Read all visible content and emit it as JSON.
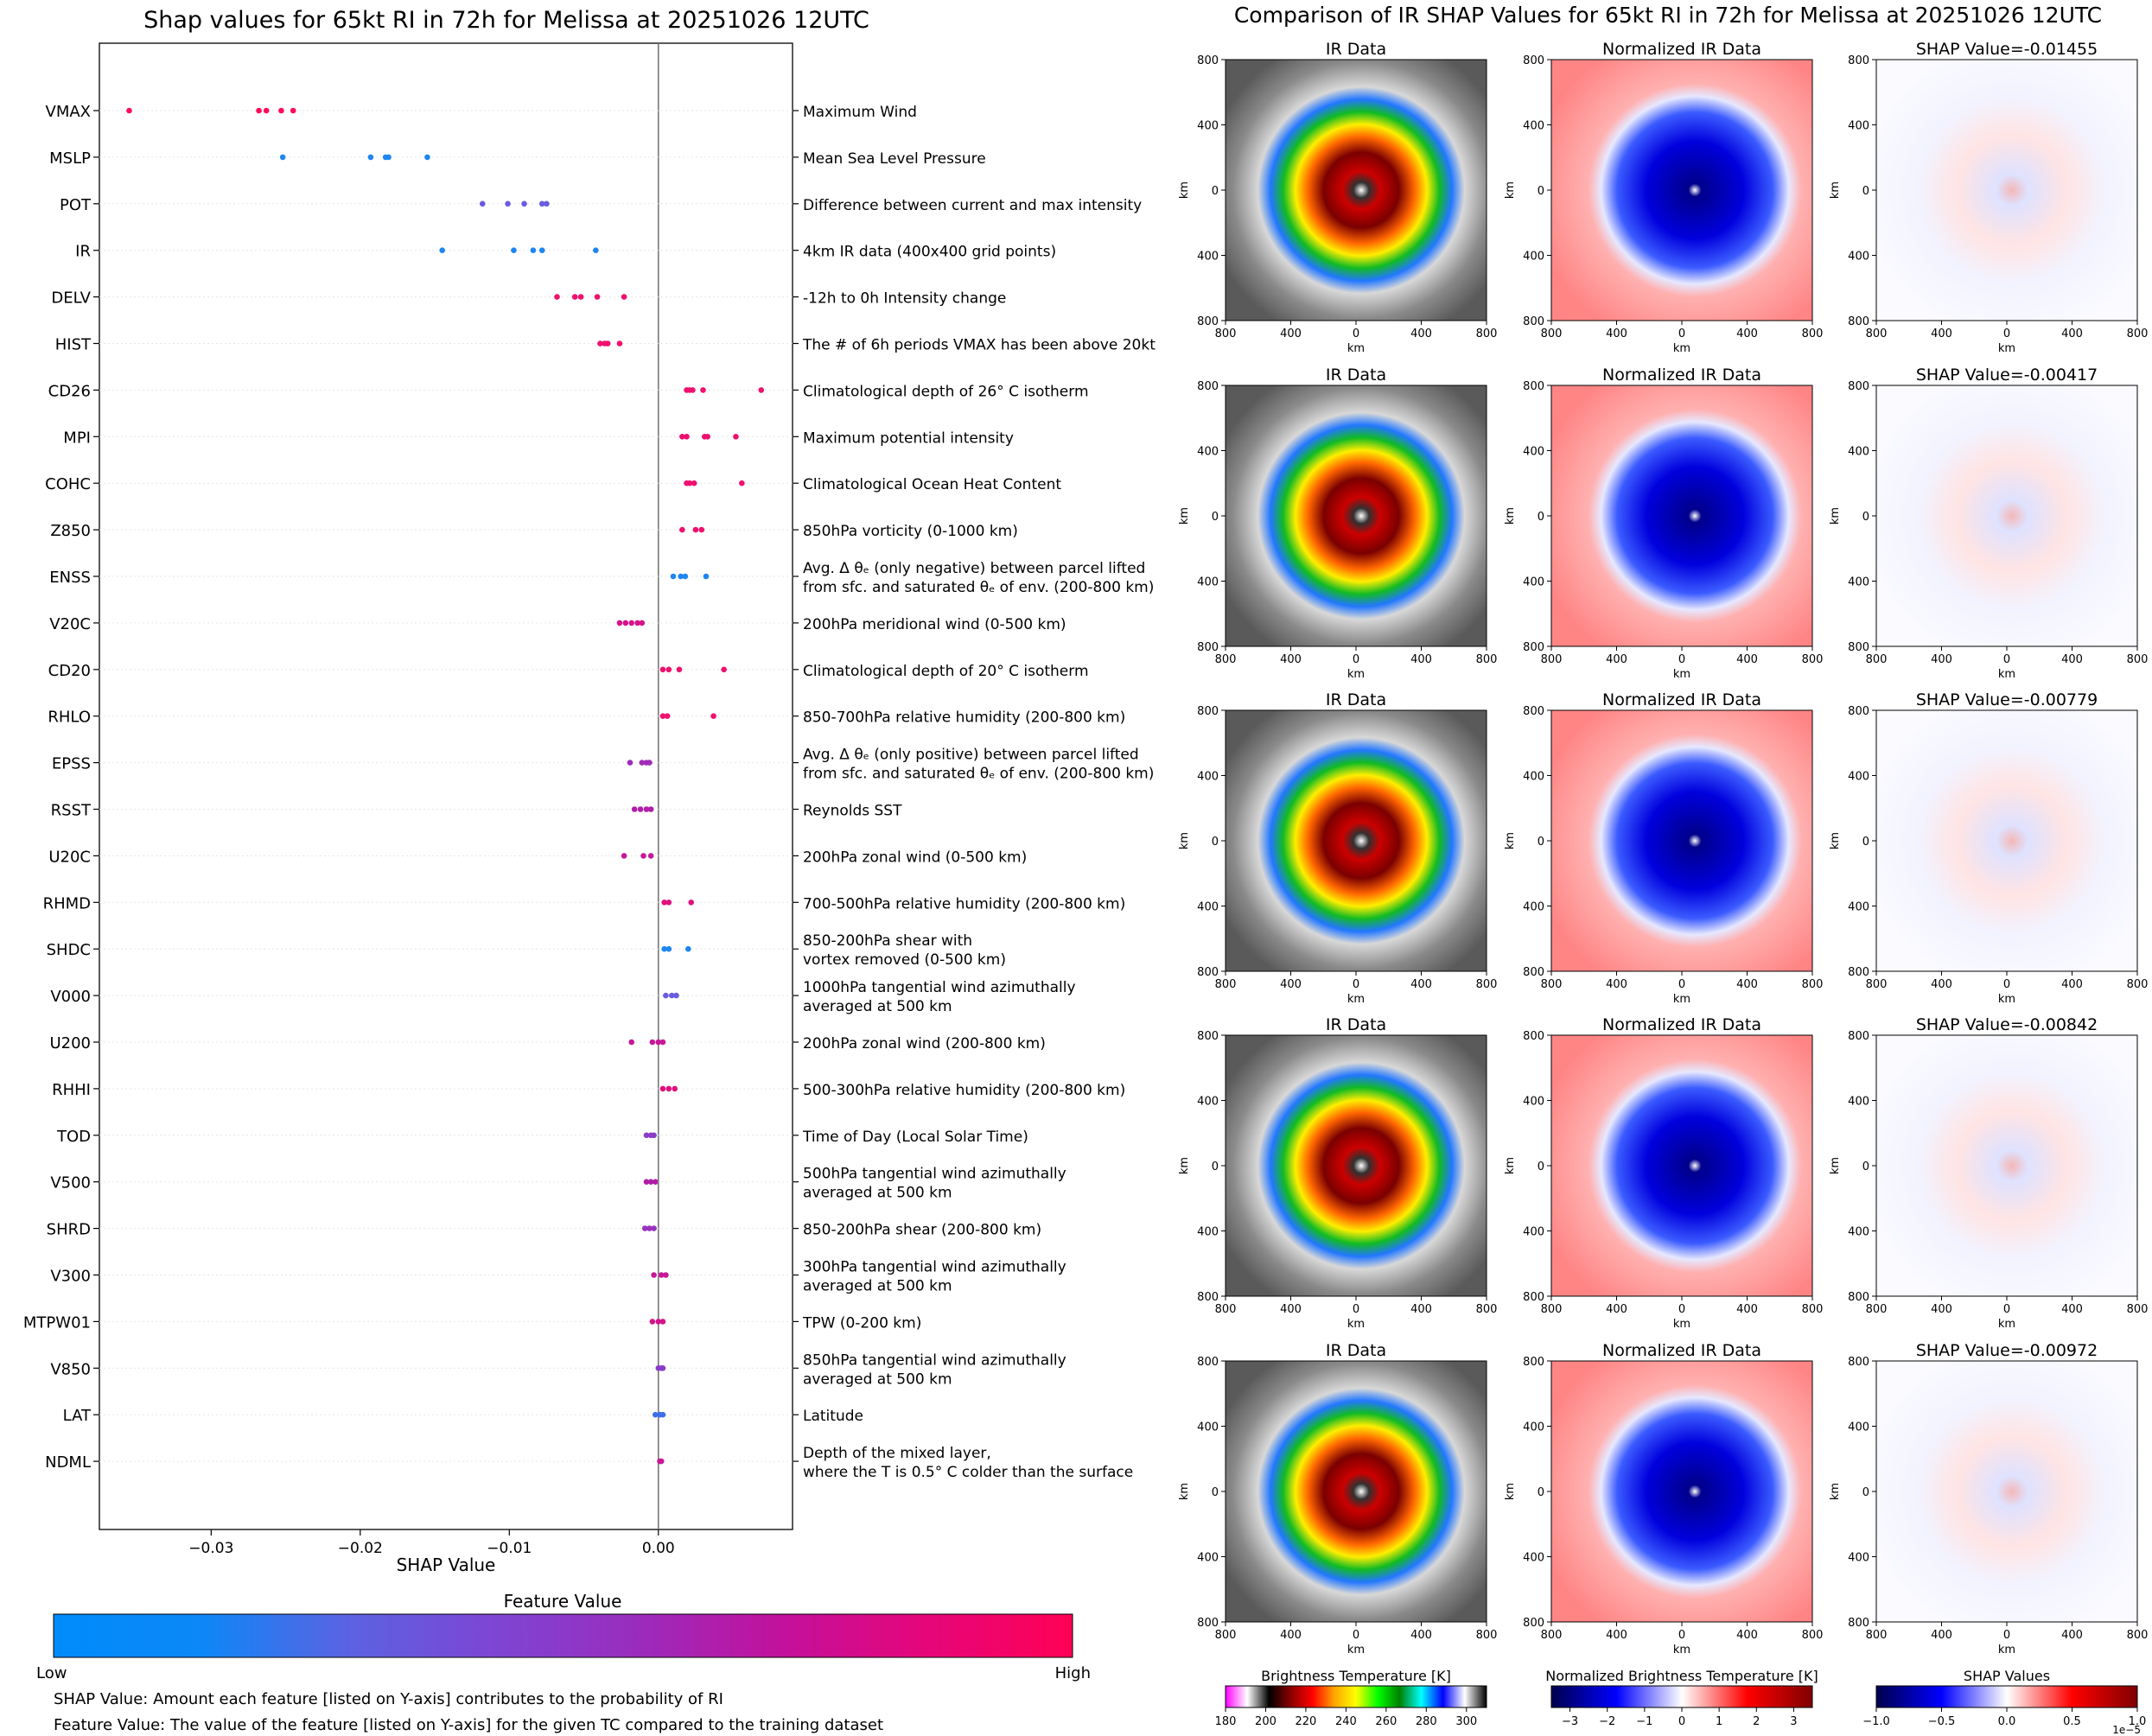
{
  "chart_data": [
    {
      "type": "scatter",
      "title": "Shap values for 65kt RI in 72h for Melissa at 20251026 12UTC",
      "xlabel": "SHAP Value",
      "xlim": [
        -0.0375,
        0.009
      ],
      "xticks": [
        {
          "value": -0.03,
          "label": "−0.03"
        },
        {
          "value": -0.02,
          "label": "−0.02"
        },
        {
          "value": -0.01,
          "label": "−0.01"
        },
        {
          "value": 0.0,
          "label": "0.00"
        }
      ],
      "features": [
        {
          "name": "VMAX",
          "desc": [
            "Maximum Wind"
          ],
          "color": "#ff0a5e",
          "points": [
            -0.0355,
            -0.0268,
            -0.0263,
            -0.0253,
            -0.0245
          ]
        },
        {
          "name": "MSLP",
          "desc": [
            "Mean Sea Level Pressure"
          ],
          "color": "#1e86f0",
          "points": [
            -0.0252,
            -0.0193,
            -0.0183,
            -0.0181,
            -0.0155
          ]
        },
        {
          "name": "POT",
          "desc": [
            "Difference between current and max intensity"
          ],
          "color": "#6a5ce0",
          "points": [
            -0.0118,
            -0.0101,
            -0.009,
            -0.0078,
            -0.0075
          ]
        },
        {
          "name": "IR",
          "desc": [
            "4km IR data (400x400 grid points)"
          ],
          "color": "#1e86f0",
          "points": [
            -0.0145,
            -0.0097,
            -0.0084,
            -0.0078,
            -0.0042
          ]
        },
        {
          "name": "DELV",
          "desc": [
            "-12h to 0h Intensity change"
          ],
          "color": "#f0106e",
          "points": [
            -0.0068,
            -0.0056,
            -0.0052,
            -0.0041,
            -0.0023
          ]
        },
        {
          "name": "HIST",
          "desc": [
            "The # of 6h periods VMAX has been above 20kt"
          ],
          "color": "#f0106e",
          "points": [
            -0.0039,
            -0.0036,
            -0.0034,
            -0.0026
          ]
        },
        {
          "name": "CD26",
          "desc": [
            "Climatological depth of 26° C isotherm"
          ],
          "color": "#f0106e",
          "points": [
            0.0019,
            0.0021,
            0.0023,
            0.003,
            0.0069
          ]
        },
        {
          "name": "MPI",
          "desc": [
            "Maximum potential intensity"
          ],
          "color": "#f0106e",
          "points": [
            0.0016,
            0.0019,
            0.0031,
            0.0033,
            0.0052
          ]
        },
        {
          "name": "COHC",
          "desc": [
            "Climatological Ocean Heat Content"
          ],
          "color": "#f0106e",
          "points": [
            0.0019,
            0.0021,
            0.0024,
            0.0056
          ]
        },
        {
          "name": "Z850",
          "desc": [
            "850hPa vorticity (0-1000 km)"
          ],
          "color": "#f0106e",
          "points": [
            0.0016,
            0.0025,
            0.0029
          ]
        },
        {
          "name": "ENSS",
          "desc": [
            "Avg. Δ θₑ (only negative) between parcel lifted",
            "from sfc. and saturated θₑ of env. (200-800 km)"
          ],
          "color": "#1e86f0",
          "points": [
            0.001,
            0.0015,
            0.0018,
            0.0032
          ]
        },
        {
          "name": "V20C",
          "desc": [
            "200hPa meridional wind (0-500 km)"
          ],
          "color": "#d4138a",
          "points": [
            -0.0026,
            -0.0022,
            -0.0018,
            -0.0014,
            -0.0011
          ]
        },
        {
          "name": "CD20",
          "desc": [
            "Climatological depth of 20° C isotherm"
          ],
          "color": "#f0106e",
          "points": [
            0.0003,
            0.0007,
            0.0014,
            0.0044
          ]
        },
        {
          "name": "RHLO",
          "desc": [
            "850-700hPa relative humidity (200-800 km)"
          ],
          "color": "#f0106e",
          "points": [
            0.0003,
            0.0006,
            0.0037
          ]
        },
        {
          "name": "EPSS",
          "desc": [
            "Avg. Δ θₑ (only positive) between parcel lifted",
            "from sfc. and saturated θₑ of env. (200-800 km)"
          ],
          "color": "#a02cb8",
          "points": [
            -0.0019,
            -0.0011,
            -0.0008,
            -0.0006
          ]
        },
        {
          "name": "RSST",
          "desc": [
            "Reynolds SST"
          ],
          "color": "#b01ea8",
          "points": [
            -0.0016,
            -0.0012,
            -0.0008,
            -0.0005
          ]
        },
        {
          "name": "U20C",
          "desc": [
            "200hPa zonal wind (0-500 km)"
          ],
          "color": "#c81898",
          "points": [
            -0.0023,
            -0.001,
            -0.0005
          ]
        },
        {
          "name": "RHMD",
          "desc": [
            "700-500hPa relative humidity (200-800 km)"
          ],
          "color": "#e0107c",
          "points": [
            0.0004,
            0.0007,
            0.0022
          ]
        },
        {
          "name": "SHDC",
          "desc": [
            "850-200hPa shear with",
            "vortex removed (0-500 km)"
          ],
          "color": "#1e86f0",
          "points": [
            0.0004,
            0.0007,
            0.002
          ]
        },
        {
          "name": "V000",
          "desc": [
            "1000hPa tangential wind azimuthally",
            "averaged at 500 km"
          ],
          "color": "#6a5ce0",
          "points": [
            0.0005,
            0.0009,
            0.0012
          ]
        },
        {
          "name": "U200",
          "desc": [
            "200hPa zonal wind (200-800 km)"
          ],
          "color": "#c81898",
          "points": [
            -0.0018,
            -0.0004,
            0.0,
            0.0003
          ]
        },
        {
          "name": "RHHI",
          "desc": [
            "500-300hPa relative humidity (200-800 km)"
          ],
          "color": "#e0107c",
          "points": [
            0.0003,
            0.0007,
            0.0011
          ]
        },
        {
          "name": "TOD",
          "desc": [
            "Time of Day (Local Solar Time)"
          ],
          "color": "#8a3cc8",
          "points": [
            -0.0008,
            -0.0005,
            -0.0003
          ]
        },
        {
          "name": "V500",
          "desc": [
            "500hPa tangential wind azimuthally",
            "averaged at 500 km"
          ],
          "color": "#b01ea8",
          "points": [
            -0.0008,
            -0.0005,
            -0.0002
          ]
        },
        {
          "name": "SHRD",
          "desc": [
            "850-200hPa shear (200-800 km)"
          ],
          "color": "#9a34c0",
          "points": [
            -0.0009,
            -0.0006,
            -0.0003
          ]
        },
        {
          "name": "V300",
          "desc": [
            "300hPa tangential wind azimuthally",
            "averaged at 500 km"
          ],
          "color": "#c81898",
          "points": [
            -0.0003,
            0.0002,
            0.0005
          ]
        },
        {
          "name": "MTPW01",
          "desc": [
            "TPW (0-200 km)"
          ],
          "color": "#d4138a",
          "points": [
            -0.0004,
            0.0,
            0.0003
          ]
        },
        {
          "name": "V850",
          "desc": [
            "850hPa tangential wind azimuthally",
            "averaged at 500 km"
          ],
          "color": "#8a3cc8",
          "points": [
            0.0,
            0.0002,
            0.0003
          ]
        },
        {
          "name": "LAT",
          "desc": [
            "Latitude"
          ],
          "color": "#3f6ee8",
          "points": [
            -0.0002,
            0.0001,
            0.0003
          ]
        },
        {
          "name": "NDML",
          "desc": [
            "Depth of the mixed layer,",
            "where the T is 0.5° C colder than the surface"
          ],
          "color": "#c81898",
          "points": [
            0.0001,
            0.0002
          ]
        }
      ],
      "colorbar": {
        "title": "Feature Value",
        "low_label": "Low",
        "high_label": "High",
        "colors": [
          "#008bfa",
          "#0c88f8",
          "#5a63e2",
          "#7d46d4",
          "#9a2cbd",
          "#c2119c",
          "#e6067a",
          "#ff0155"
        ]
      },
      "notes": [
        "SHAP Value: Amount each feature [listed on Y-axis] contributes to the probability of RI",
        "Feature Value: The value of the feature [listed on Y-axis] for the given TC compared to the training dataset"
      ]
    },
    {
      "type": "heatmap",
      "title": "Comparison of IR SHAP Values for 65kt RI in 72h for Melissa at 20251026 12UTC",
      "panel_titles": [
        "IR Data",
        "Normalized IR Data"
      ],
      "shap_values": [
        "SHAP Value=-0.01455",
        "SHAP Value=-0.00417",
        "SHAP Value=-0.00779",
        "SHAP Value=-0.00842",
        "SHAP Value=-0.00972"
      ],
      "axis_label": "km",
      "axis_ticks": [
        "800",
        "400",
        "0",
        "400",
        "800"
      ],
      "colorbars": [
        {
          "title": "Brightness Temperature [K]",
          "ticks": [
            "180",
            "200",
            "220",
            "240",
            "260",
            "280",
            "300"
          ],
          "vmin": 180,
          "vmax": 310,
          "values": [
            180,
            200,
            220,
            240,
            260,
            280,
            300
          ],
          "colors": [
            "#ff00ff",
            "#ffffff",
            "#000000",
            "#8b0000",
            "#ff0000",
            "#ffa500",
            "#ffff00",
            "#00ff00",
            "#008000",
            "#00ffff",
            "#0000ff",
            "#ffffff",
            "#000000"
          ]
        },
        {
          "title": "Normalized Brightness Temperature [K]",
          "ticks": [
            "−3",
            "−2",
            "−1",
            "0",
            "1",
            "2",
            "3"
          ],
          "vmin": -3.5,
          "vmax": 3.5,
          "values": [
            -3,
            -2,
            -1,
            0,
            1,
            2,
            3
          ],
          "colors": [
            "#00004d",
            "#0000ff",
            "#ffffff",
            "#ff0000",
            "#800000"
          ]
        },
        {
          "title": "SHAP Values",
          "ticks": [
            "−1.0",
            "−0.5",
            "0.0",
            "0.5",
            "1.0"
          ],
          "vmin": -1.0,
          "vmax": 1.0,
          "values": [
            -1.0,
            -0.5,
            0.0,
            0.5,
            1.0
          ],
          "exponent": "1e−5",
          "colors": [
            "#00004d",
            "#0000ff",
            "#ffffff",
            "#ff0000",
            "#800000"
          ]
        }
      ]
    }
  ]
}
